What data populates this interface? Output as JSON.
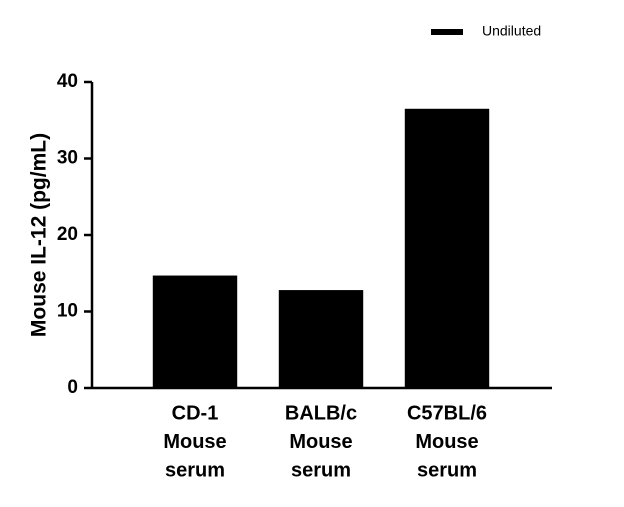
{
  "chart_data": {
    "type": "bar",
    "y_label": "Mouse IL-12 (pg/mL)",
    "categories": [
      [
        "CD-1",
        "Mouse",
        "serum"
      ],
      [
        "BALB/c",
        "Mouse",
        "serum"
      ],
      [
        "C57BL/6",
        "Mouse",
        "serum"
      ]
    ],
    "series": [
      {
        "name": "Undiluted",
        "color": "#000000",
        "values": [
          14.7,
          12.8,
          36.5
        ]
      }
    ],
    "ylim": [
      0,
      40
    ],
    "yticks": [
      0,
      10,
      20,
      30,
      40
    ],
    "grid": false,
    "legend": "top-right"
  }
}
